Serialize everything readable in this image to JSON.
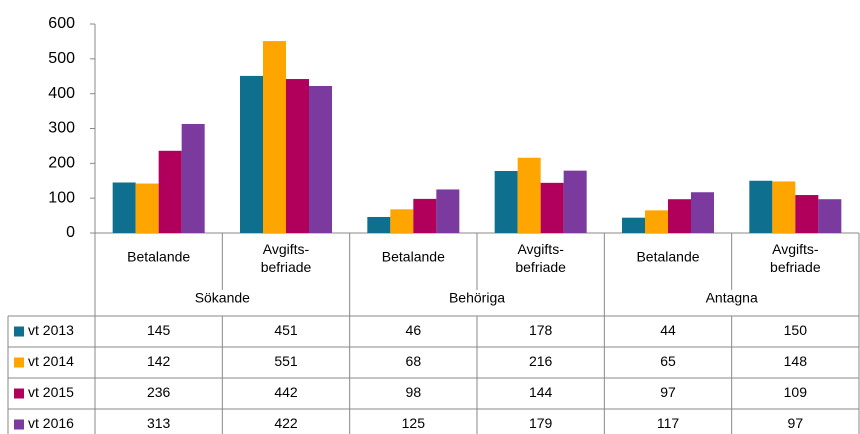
{
  "chart_data": {
    "type": "bar",
    "groups": [
      "Sökande",
      "Behöriga",
      "Antagna"
    ],
    "categories": [
      "Betalande",
      "Avgifts-befriade",
      "Betalande",
      "Avgifts-befriade",
      "Betalande",
      "Avgifts-befriade"
    ],
    "series": [
      {
        "name": "vt 2013",
        "color": "#0f6f8f",
        "values": [
          145,
          451,
          46,
          178,
          44,
          150
        ]
      },
      {
        "name": "vt 2014",
        "color": "#ffa500",
        "values": [
          142,
          551,
          68,
          216,
          65,
          148
        ]
      },
      {
        "name": "vt 2015",
        "color": "#b0005b",
        "values": [
          236,
          442,
          98,
          144,
          97,
          109
        ]
      },
      {
        "name": "vt 2016",
        "color": "#7b3a9e",
        "values": [
          313,
          422,
          125,
          179,
          117,
          97
        ]
      }
    ],
    "ylim": [
      0,
      600
    ],
    "yticks": [
      0,
      100,
      200,
      300,
      400,
      500,
      600
    ],
    "grid": false
  }
}
